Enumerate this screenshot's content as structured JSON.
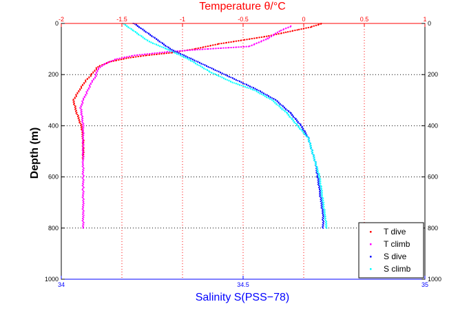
{
  "chart_data": {
    "type": "scatter",
    "top_axis": {
      "label": "Temperature θ/°C",
      "range": [
        -2,
        1
      ],
      "ticks": [
        "-2",
        "-1.5",
        "-1",
        "-0.5",
        "0",
        "0.5",
        "1"
      ],
      "color": "#ff0000"
    },
    "bottom_axis": {
      "label": "Salinity S(PSS−78)",
      "range": [
        34,
        35
      ],
      "ticks": [
        "34",
        "34.5",
        "35"
      ],
      "color": "#0000ff"
    },
    "y_axis": {
      "label": "Depth (m)",
      "range": [
        0,
        1000
      ],
      "reversed": true,
      "ticks": [
        "0",
        "200",
        "400",
        "600",
        "800",
        "1000"
      ]
    },
    "grid": "vertical dotted red at temperature ticks, horizontal dotted black at depth ticks",
    "legend_position": "bottom-right",
    "series": [
      {
        "name": "T dive",
        "axis": "temperature",
        "color": "#ff0000",
        "points": [
          [
            0.15,
            0
          ],
          [
            0.12,
            5
          ],
          [
            0.05,
            15
          ],
          [
            -0.05,
            25
          ],
          [
            -0.15,
            35
          ],
          [
            -0.3,
            50
          ],
          [
            -0.5,
            65
          ],
          [
            -0.7,
            80
          ],
          [
            -0.9,
            100
          ],
          [
            -1.1,
            115
          ],
          [
            -1.3,
            125
          ],
          [
            -1.45,
            135
          ],
          [
            -1.6,
            150
          ],
          [
            -1.7,
            170
          ],
          [
            -1.75,
            200
          ],
          [
            -1.8,
            225
          ],
          [
            -1.85,
            260
          ],
          [
            -1.9,
            300
          ],
          [
            -1.88,
            340
          ],
          [
            -1.85,
            380
          ],
          [
            -1.83,
            410
          ],
          [
            -1.82,
            450
          ],
          [
            -1.82,
            500
          ],
          [
            -1.82,
            530
          ]
        ]
      },
      {
        "name": "T climb",
        "axis": "temperature",
        "color": "#ff00ff",
        "points": [
          [
            -0.1,
            10
          ],
          [
            -0.2,
            30
          ],
          [
            -0.3,
            60
          ],
          [
            -0.45,
            90
          ],
          [
            -0.8,
            100
          ],
          [
            -1.1,
            110
          ],
          [
            -1.4,
            125
          ],
          [
            -1.55,
            140
          ],
          [
            -1.65,
            160
          ],
          [
            -1.7,
            180
          ],
          [
            -1.72,
            210
          ],
          [
            -1.75,
            230
          ],
          [
            -1.78,
            260
          ],
          [
            -1.82,
            300
          ],
          [
            -1.84,
            330
          ],
          [
            -1.83,
            360
          ],
          [
            -1.82,
            400
          ],
          [
            -1.82,
            450
          ],
          [
            -1.82,
            500
          ],
          [
            -1.82,
            550
          ],
          [
            -1.82,
            600
          ],
          [
            -1.82,
            650
          ],
          [
            -1.82,
            700
          ],
          [
            -1.82,
            750
          ],
          [
            -1.82,
            800
          ]
        ]
      },
      {
        "name": "S dive",
        "axis": "salinity",
        "color": "#0000ff",
        "points": [
          [
            34.2,
            0
          ],
          [
            34.22,
            20
          ],
          [
            34.26,
            60
          ],
          [
            34.3,
            100
          ],
          [
            34.36,
            140
          ],
          [
            34.42,
            180
          ],
          [
            34.48,
            220
          ],
          [
            34.54,
            260
          ],
          [
            34.59,
            300
          ],
          [
            34.63,
            350
          ],
          [
            34.66,
            400
          ],
          [
            34.68,
            450
          ],
          [
            34.69,
            500
          ],
          [
            34.7,
            550
          ],
          [
            34.705,
            600
          ],
          [
            34.71,
            650
          ],
          [
            34.715,
            700
          ],
          [
            34.72,
            750
          ],
          [
            34.72,
            800
          ]
        ]
      },
      {
        "name": "S climb",
        "axis": "salinity",
        "color": "#00ffff",
        "points": [
          [
            34.17,
            0
          ],
          [
            34.2,
            30
          ],
          [
            34.24,
            70
          ],
          [
            34.29,
            100
          ],
          [
            34.35,
            140
          ],
          [
            34.41,
            190
          ],
          [
            34.47,
            230
          ],
          [
            34.53,
            260
          ],
          [
            34.58,
            300
          ],
          [
            34.62,
            350
          ],
          [
            34.65,
            400
          ],
          [
            34.68,
            450
          ],
          [
            34.69,
            500
          ],
          [
            34.7,
            550
          ],
          [
            34.71,
            600
          ],
          [
            34.715,
            650
          ],
          [
            34.72,
            700
          ],
          [
            34.725,
            750
          ],
          [
            34.73,
            800
          ]
        ]
      }
    ]
  }
}
